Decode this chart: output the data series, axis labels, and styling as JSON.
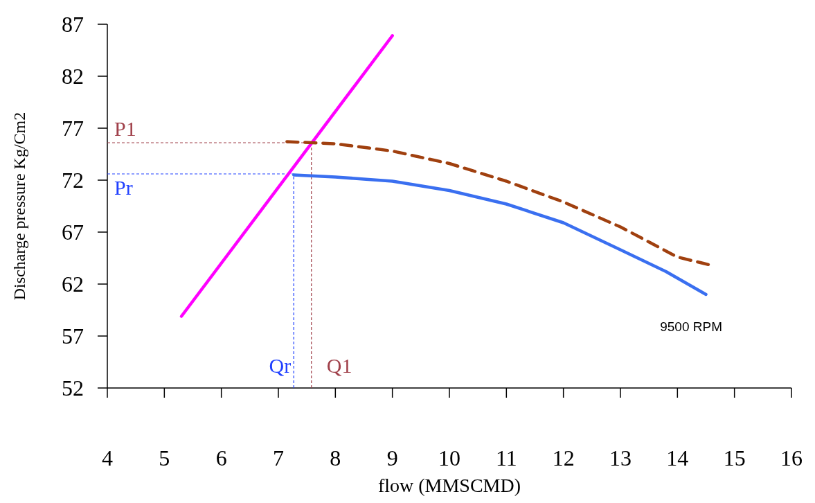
{
  "chart_data": {
    "type": "line",
    "xlabel": "flow (MMSCMD)",
    "ylabel": "Discharge pressure Kg/Cm2",
    "xlim": [
      4,
      16
    ],
    "ylim": [
      52,
      87
    ],
    "xticks": [
      4,
      5,
      6,
      7,
      8,
      9,
      10,
      11,
      12,
      13,
      14,
      15,
      16
    ],
    "yticks": [
      52,
      57,
      62,
      67,
      72,
      77,
      82,
      87
    ],
    "grid": false,
    "marker": "none",
    "series": [
      {
        "color": "#ff00ff",
        "line_style": "solid",
        "x": [
          5.3,
          9.0
        ],
        "values": [
          58.9,
          85.9
        ]
      },
      {
        "color": "#3a6ff0",
        "line_style": "solid",
        "x": [
          7.27,
          8,
          9,
          10,
          11,
          12,
          13,
          13.8,
          14.5
        ],
        "values": [
          72.5,
          72.3,
          71.9,
          71.0,
          69.7,
          67.9,
          65.3,
          63.2,
          61.0
        ]
      },
      {
        "color": "#a0400f",
        "line_style": "dashed",
        "x": [
          7.15,
          8,
          9,
          10,
          11,
          12,
          13,
          14,
          14.6
        ],
        "values": [
          75.7,
          75.5,
          74.8,
          73.6,
          71.9,
          69.9,
          67.5,
          64.6,
          63.8
        ]
      },
      {
        "name": "P1",
        "color": "#a0404a",
        "line_style": "dotted",
        "x": [
          4,
          7.58
        ],
        "values": [
          75.6,
          75.6
        ]
      },
      {
        "name": "Pr",
        "color": "#2040ff",
        "line_style": "dotted",
        "x": [
          4,
          7.27
        ],
        "values": [
          72.6,
          72.6
        ]
      },
      {
        "name": "Qr",
        "color": "#2040ff",
        "line_style": "dotted",
        "x": [
          7.27,
          7.27
        ],
        "values": [
          52,
          72.6
        ]
      },
      {
        "name": "Q1",
        "color": "#a0404a",
        "line_style": "dotted",
        "x": [
          7.58,
          7.58
        ],
        "values": [
          52,
          75.6
        ]
      }
    ],
    "annotations": [
      "9500 RPM"
    ]
  }
}
